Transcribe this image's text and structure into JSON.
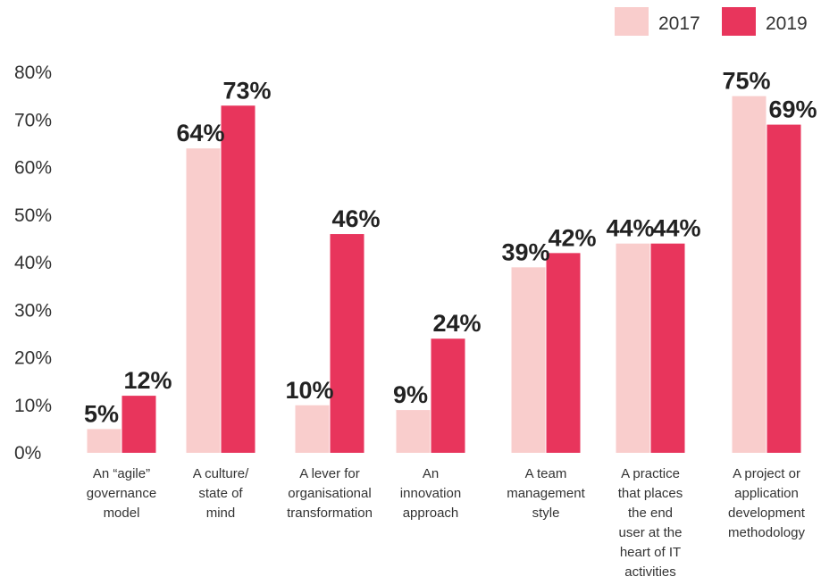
{
  "chart_data": {
    "type": "bar",
    "categories": [
      [
        "An “agile”",
        "governance",
        "model"
      ],
      [
        "A culture/",
        "state of",
        "mind"
      ],
      [
        "A lever for",
        "organisational",
        "transformation"
      ],
      [
        "An",
        "innovation",
        "approach"
      ],
      [
        "A team",
        "management",
        "style"
      ],
      [
        "A practice",
        "that places",
        "the end",
        "user at the",
        "heart of IT",
        "activities"
      ],
      [
        "A project or",
        "application",
        "development",
        "methodology"
      ]
    ],
    "series": [
      {
        "name": "2017",
        "values": [
          5,
          64,
          10,
          9,
          39,
          44,
          75
        ],
        "labels": [
          "5%",
          "64%",
          "10%",
          "9%",
          "39%",
          "44%",
          "75%"
        ],
        "color": "#f9cdcc"
      },
      {
        "name": "2019",
        "values": [
          12,
          73,
          46,
          24,
          42,
          44,
          69
        ],
        "labels": [
          "12%",
          "73%",
          "46%",
          "24%",
          "42%",
          "44%",
          "69%"
        ],
        "color": "#e8355c"
      }
    ],
    "ylim": [
      0,
      80
    ],
    "yticks": [
      "0%",
      "10%",
      "20%",
      "30%",
      "40%",
      "50%",
      "60%",
      "70%",
      "80%"
    ],
    "legend_position": "top-right",
    "grid": false,
    "title": "",
    "xlabel": "",
    "ylabel": ""
  }
}
